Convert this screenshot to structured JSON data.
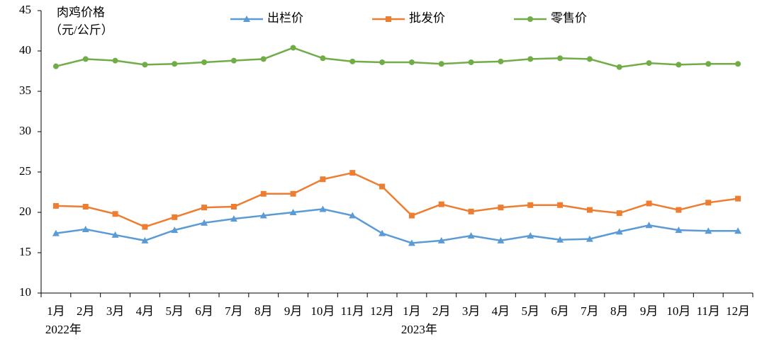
{
  "chart_data": {
    "type": "line",
    "ylabel": [
      "肉鸡价格",
      "（元/公斤）"
    ],
    "categories": [
      "1月",
      "2月",
      "3月",
      "4月",
      "5月",
      "6月",
      "7月",
      "8月",
      "9月",
      "10月",
      "11月",
      "12月",
      "1月",
      "2月",
      "3月",
      "4月",
      "5月",
      "6月",
      "7月",
      "8月",
      "9月",
      "10月",
      "11月",
      "12月"
    ],
    "x_groups": [
      "2022年",
      "2023年"
    ],
    "ylim": [
      10,
      45
    ],
    "yticks": [
      10,
      15,
      20,
      25,
      30,
      35,
      40,
      45
    ],
    "grid": false,
    "legend": "top",
    "series": [
      {
        "name": "出栏价",
        "color": "#5b9bd5",
        "marker": "triangle",
        "values": [
          17.4,
          17.9,
          17.2,
          16.5,
          17.8,
          18.7,
          19.2,
          19.6,
          20.0,
          20.4,
          19.6,
          17.4,
          16.2,
          16.5,
          17.1,
          16.5,
          17.1,
          16.6,
          16.7,
          17.6,
          18.4,
          17.8,
          17.7,
          17.7
        ]
      },
      {
        "name": "批发价",
        "color": "#ed7d31",
        "marker": "square",
        "values": [
          20.8,
          20.7,
          19.8,
          18.2,
          19.4,
          20.6,
          20.7,
          22.3,
          22.3,
          24.1,
          24.9,
          23.2,
          19.6,
          21.0,
          20.1,
          20.6,
          20.9,
          20.9,
          20.3,
          19.9,
          21.1,
          20.3,
          21.2,
          21.7
        ]
      },
      {
        "name": "零售价",
        "color": "#70ad47",
        "marker": "circle",
        "values": [
          38.1,
          39.0,
          38.8,
          38.3,
          38.4,
          38.6,
          38.8,
          39.0,
          40.4,
          39.1,
          38.7,
          38.6,
          38.6,
          38.4,
          38.6,
          38.7,
          39.0,
          39.1,
          39.0,
          38.0,
          38.5,
          38.3,
          38.4,
          38.4
        ]
      }
    ]
  }
}
